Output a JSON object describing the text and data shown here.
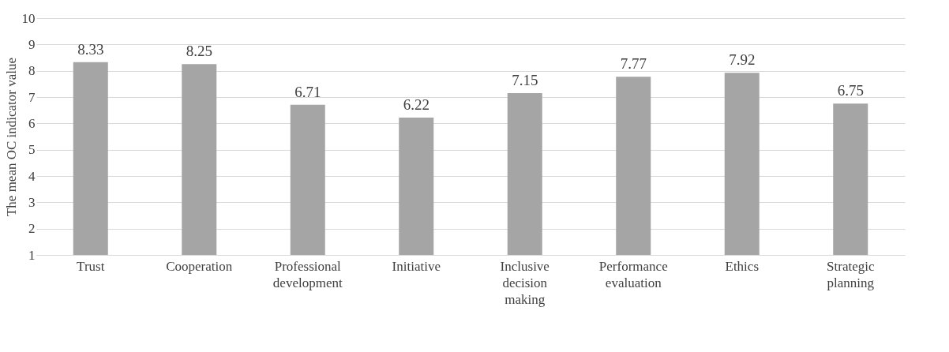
{
  "chart_data": {
    "type": "bar",
    "ylabel": "The mean OC indicator value",
    "categories": [
      "Trust",
      "Cooperation",
      "Professional development",
      "Initiative",
      "Inclusive decision making",
      "Performance evaluation",
      "Ethics",
      "Strategic planning"
    ],
    "values": [
      8.33,
      8.25,
      6.71,
      6.22,
      7.15,
      7.77,
      7.92,
      6.75
    ],
    "color": "#a5a5a5",
    "ylim": [
      1,
      10
    ],
    "yticks": [
      1,
      2,
      3,
      4,
      5,
      6,
      7,
      8,
      9,
      10
    ],
    "grid": "y",
    "data_labels": true
  }
}
